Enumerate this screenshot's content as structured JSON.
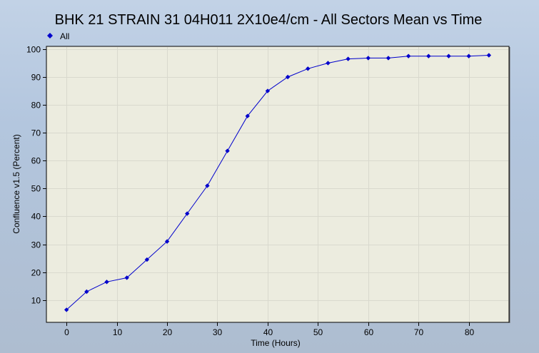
{
  "colors": {
    "series": "#0000cc",
    "plot_background": "#ececdf",
    "grid": "#d9d9ce"
  },
  "chart_data": {
    "type": "line",
    "title": "BHK 21 STRAIN 31 04H011 2X10e4/cm - All Sectors Mean vs Time",
    "xlabel": "Time (Hours)",
    "ylabel": "Confluence v1.5 (Percent)",
    "xlim": [
      -4,
      88
    ],
    "ylim": [
      2,
      101
    ],
    "xticks": [
      0,
      10,
      20,
      30,
      40,
      50,
      60,
      70,
      80
    ],
    "yticks": [
      10,
      20,
      30,
      40,
      50,
      60,
      70,
      80,
      90,
      100
    ],
    "grid": true,
    "legend_position": "top-left",
    "series": [
      {
        "name": "All",
        "marker": "diamond",
        "x": [
          0,
          4,
          8,
          12,
          16,
          20,
          24,
          28,
          32,
          36,
          40,
          44,
          48,
          52,
          56,
          60,
          64,
          68,
          72,
          76,
          80,
          84
        ],
        "y": [
          6.5,
          13,
          16.5,
          18,
          24.5,
          31,
          41,
          51,
          63.5,
          76,
          85,
          90,
          93,
          95,
          96.5,
          96.8,
          96.8,
          97.5,
          97.5,
          97.5,
          97.5,
          97.8
        ]
      }
    ]
  }
}
